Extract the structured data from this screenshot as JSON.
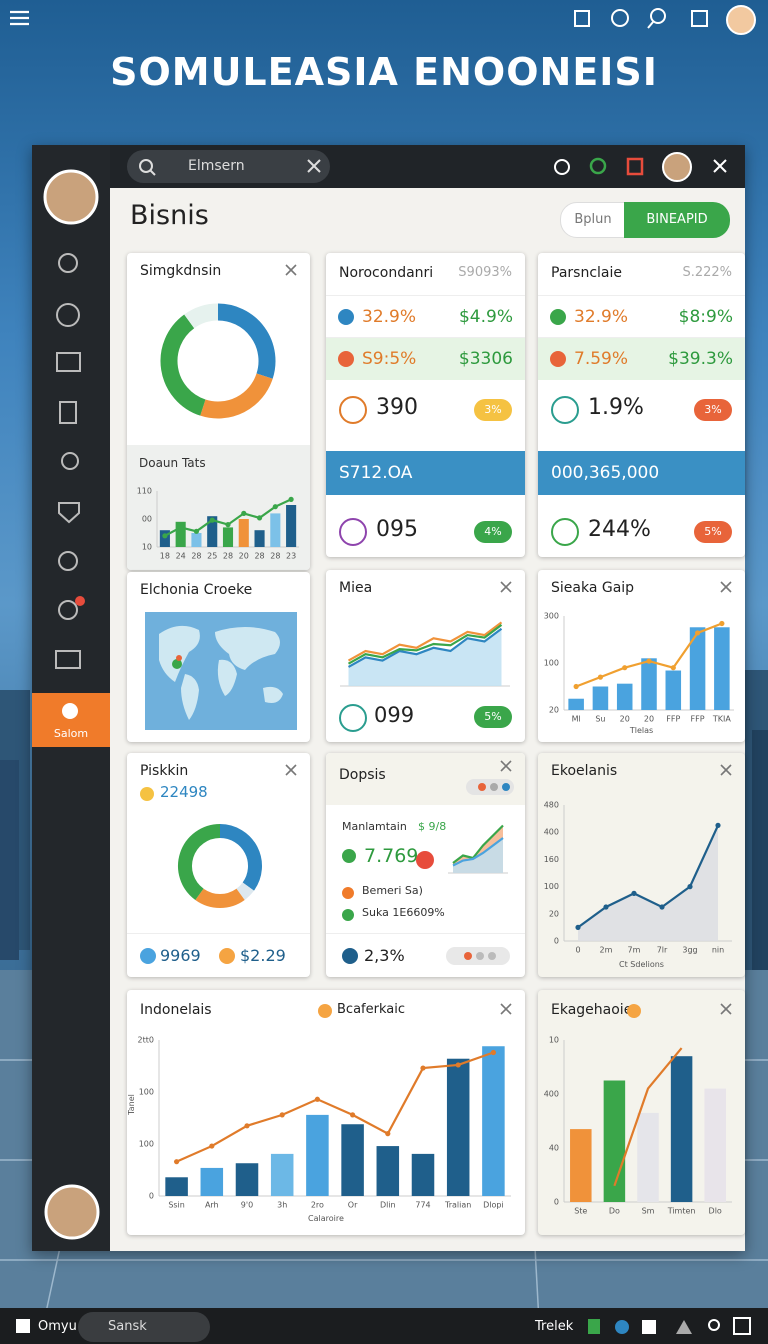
{
  "app_title": "SOMULEASIA ENOONEISI",
  "search": "Elmsern",
  "sidebar_active": "Salom",
  "heading": "Bisnis",
  "toggle": [
    "Bplun",
    "BINEAPID"
  ],
  "donut_card": {
    "title": "Simgkdnsin",
    "donut": {
      "values": [
        30,
        25,
        35,
        10
      ],
      "colors": [
        "#2e86c1",
        "#f0923a",
        "#3aa64a",
        "#e6f2ee"
      ]
    },
    "sub_title": "Doaun Tats",
    "chart": {
      "ylim": [
        0,
        100
      ],
      "y_labels": [
        "110",
        "00",
        "10"
      ],
      "x_labels": [
        "18",
        "24",
        "28",
        "25",
        "28",
        "20",
        "28",
        "28",
        "23"
      ],
      "bars": {
        "values": [
          30,
          45,
          25,
          55,
          35,
          50,
          30,
          60,
          75
        ],
        "colors": [
          "#1f5f8b",
          "#3aa64a",
          "#7cc1e8",
          "#1f5f8b",
          "#3aa64a",
          "#f0923a",
          "#1f5f8b",
          "#7cc1e8",
          "#1f5f8b"
        ]
      },
      "lines": [
        {
          "values": [
            20,
            35,
            28,
            48,
            40,
            60,
            52,
            72,
            85
          ],
          "color": "#3aa64a",
          "dots": true
        }
      ]
    }
  },
  "stats_1": {
    "title": "Norocondanri",
    "note": "S9093%",
    "rows": [
      [
        "32.9%",
        "$4.9%"
      ],
      [
        "S9:5%",
        "$3306"
      ]
    ],
    "big": [
      {
        "value": "390",
        "badge": "3%",
        "color": "#f5c242",
        "ring": "#e07b2a"
      },
      {
        "value": "095",
        "badge": "4%",
        "color": "#3aa64a",
        "ring": "#8e44ad"
      }
    ],
    "band": "S712.OA"
  },
  "stats_2": {
    "title": "Parsnclaie",
    "note": "S.222%",
    "rows": [
      [
        "32.9%",
        "$8:9%"
      ],
      [
        "7.59%",
        "$39.3%"
      ]
    ],
    "big": [
      {
        "value": "1.9%",
        "badge": "3%",
        "color": "#e8643a",
        "ring": "#2a9d8f"
      },
      {
        "value": "244%",
        "badge": "5%",
        "color": "#e8643a",
        "ring": "#3aa64a"
      }
    ],
    "band": "000,365,000"
  },
  "map_card": {
    "title": "Elchonia Croeke"
  },
  "area_card": {
    "title": "Miea",
    "stat": "099",
    "badge": "5%",
    "chart": {
      "ylim": [
        0,
        110
      ],
      "lines": [
        {
          "values": [
            30,
            45,
            40,
            55,
            50,
            60,
            55,
            75,
            70,
            90
          ],
          "color": "#2e86c1",
          "area": "#bfe0f2"
        },
        {
          "values": [
            40,
            55,
            50,
            65,
            60,
            75,
            70,
            85,
            80,
            100
          ],
          "color": "#f0923a"
        },
        {
          "values": [
            35,
            50,
            45,
            58,
            56,
            66,
            64,
            80,
            76,
            96
          ],
          "color": "#3aa64a"
        }
      ]
    }
  },
  "combo_small": {
    "title": "Sieaka Gaip",
    "axis_title": "Tlelas",
    "chart": {
      "ylim": [
        0,
        100
      ],
      "y_labels": [
        "300",
        "100",
        "20"
      ],
      "x_labels": [
        "Ml",
        "Su",
        "20",
        "20",
        "FFP",
        "FFP",
        "TKIA"
      ],
      "bars": {
        "values": [
          12,
          25,
          28,
          55,
          42,
          88,
          88
        ],
        "color": "#4aa3df"
      },
      "lines": [
        {
          "values": [
            25,
            35,
            45,
            52,
            45,
            82,
            92
          ],
          "color": "#f0a030",
          "dots": true
        }
      ]
    }
  },
  "donut2_card": {
    "title": "Piskkin",
    "value": "22498",
    "donut": {
      "values": [
        35,
        5,
        20,
        40
      ],
      "colors": [
        "#2e86c1",
        "#dde8ef",
        "#f0923a",
        "#3aa64a"
      ]
    },
    "foot": [
      "9969",
      "$2.29"
    ]
  },
  "list_card": {
    "title": "Dopsis",
    "label": "Manlamtain",
    "label_value": "$ 9/8",
    "value": "7.769",
    "mini": {
      "ylim": [
        0,
        100
      ],
      "lines": [
        {
          "values": [
            20,
            35,
            30,
            55,
            75,
            95
          ],
          "color": "#3aa64a",
          "area": "#f6b38a"
        },
        {
          "values": [
            15,
            25,
            28,
            40,
            55,
            70
          ],
          "color": "#4aa3df",
          "area": "#bfe0f2"
        }
      ]
    },
    "items": [
      "Bemeri Sa)",
      "Suka 1E6609%"
    ],
    "foot": "2,3%"
  },
  "line_card": {
    "title": "Ekoelanis",
    "axis_title": "Ct Sdelions",
    "chart": {
      "ylim": [
        0,
        100
      ],
      "y_labels": [
        "480",
        "400",
        "160",
        "100",
        "20",
        "0"
      ],
      "x_labels": [
        "0",
        "2m",
        "7m",
        "7lr",
        "3gg",
        "nin"
      ],
      "lines": [
        {
          "values": [
            10,
            25,
            35,
            25,
            40,
            85
          ],
          "color": "#1f5f8b",
          "area": "#dcdde3",
          "dots": true
        }
      ]
    }
  },
  "combo_wide": {
    "title": "Indonelais",
    "legend": "Bcaferkaic",
    "y_title": "Tanel",
    "x_title": "Calaroire",
    "chart": {
      "ylim": [
        0,
        100
      ],
      "y_labels": [
        "2tt0",
        "100",
        "100",
        "0"
      ],
      "x_labels": [
        "Ssin",
        "Arh",
        "9'0",
        "3h",
        "2ro",
        "Or",
        "Dlin",
        "774",
        "Tralian",
        "Dlopi"
      ],
      "bars": {
        "values": [
          12,
          18,
          21,
          27,
          52,
          46,
          32,
          27,
          88,
          96
        ],
        "colors": [
          "#1f5f8b",
          "#4aa3df",
          "#1f5f8b",
          "#6cb8e6",
          "#4aa3df",
          "#1f5f8b",
          "#1f5f8b",
          "#1f5f8b",
          "#1f5f8b",
          "#4aa3df"
        ]
      },
      "lines": [
        {
          "values": [
            22,
            32,
            45,
            52,
            62,
            52,
            40,
            82,
            84,
            92
          ],
          "color": "#e07b2a",
          "dots": true
        }
      ]
    }
  },
  "combo_right": {
    "title": "Ekagehaoie",
    "chart": {
      "ylim": [
        0,
        100
      ],
      "y_labels": [
        "10",
        "400",
        "40",
        "0"
      ],
      "x_labels": [
        "Ste",
        "Do",
        "Sm",
        "Timten",
        "Dlo"
      ],
      "bars": {
        "values": [
          45,
          75,
          55,
          90,
          70
        ],
        "colors": [
          "#f0923a",
          "#3aa64a",
          "#e5e5ea",
          "#1f5f8b",
          "#e8e4ea"
        ]
      },
      "lines": [
        {
          "values": [
            null,
            10,
            70,
            95,
            null
          ],
          "color": "#e07b2a"
        }
      ]
    }
  },
  "taskbar": {
    "start": "Omyu",
    "search": "Sansk",
    "tray": "Trelek"
  }
}
